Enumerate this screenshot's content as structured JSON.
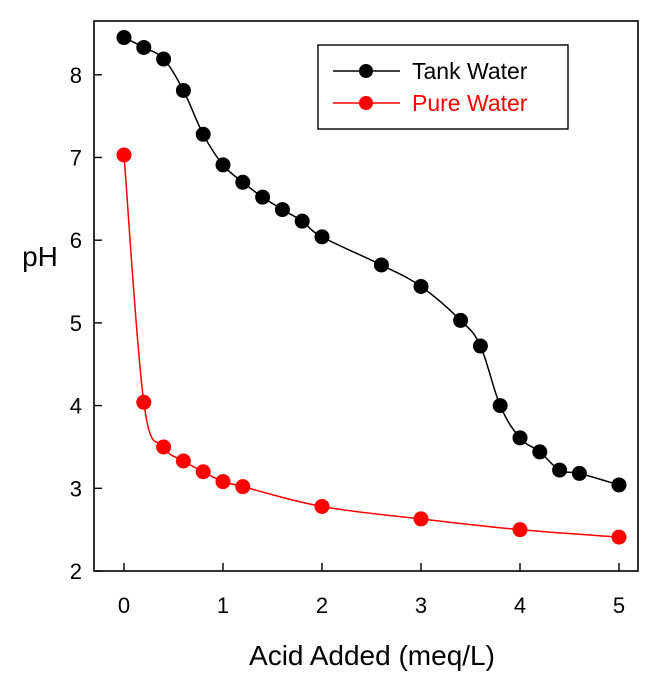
{
  "chart_data": {
    "type": "line",
    "xlabel": "Acid Added (meq/L)",
    "ylabel": "pH",
    "xlim": [
      0,
      5
    ],
    "ylim": [
      2,
      8.65
    ],
    "x_ticks": [
      0,
      1,
      2,
      3,
      4,
      5
    ],
    "y_ticks": [
      2,
      3,
      4,
      5,
      6,
      7,
      8
    ],
    "grid": false,
    "legend_position": "top-right",
    "series": [
      {
        "name": "Tank Water",
        "color": "#000000",
        "x": [
          0,
          0.2,
          0.4,
          0.6,
          0.8,
          1.0,
          1.2,
          1.4,
          1.6,
          1.8,
          2.0,
          2.6,
          3.0,
          3.4,
          3.6,
          3.8,
          4.0,
          4.2,
          4.4,
          4.6,
          5.0
        ],
        "y": [
          8.45,
          8.33,
          8.19,
          7.81,
          7.28,
          6.91,
          6.7,
          6.52,
          6.37,
          6.23,
          6.04,
          5.7,
          5.44,
          5.03,
          4.72,
          4.0,
          3.61,
          3.44,
          3.22,
          3.18,
          3.04
        ]
      },
      {
        "name": "Pure Water",
        "color": "#ff0000",
        "x": [
          0,
          0.2,
          0.4,
          0.6,
          0.8,
          1.0,
          1.2,
          2.0,
          3.0,
          4.0,
          5.0
        ],
        "y": [
          7.03,
          4.04,
          3.5,
          3.33,
          3.2,
          3.08,
          3.02,
          2.78,
          2.63,
          2.5,
          2.41
        ]
      }
    ]
  }
}
